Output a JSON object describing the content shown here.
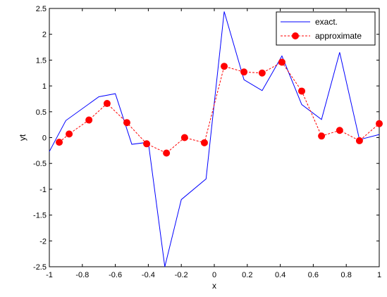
{
  "chart_data": {
    "type": "line",
    "xlabel": "x",
    "ylabel": "yt",
    "xlim": [
      -1,
      1
    ],
    "ylim": [
      -2.5,
      2.5
    ],
    "xticks": [
      -1,
      -0.8,
      -0.6,
      -0.4,
      -0.2,
      0,
      0.2,
      0.4,
      0.6,
      0.8,
      1
    ],
    "xtick_labels": [
      "-1",
      "-0.8",
      "-0.6",
      "-0.4",
      "-0.2",
      "0",
      "0.2",
      "0.4",
      "0.6",
      "0.8",
      "1"
    ],
    "yticks": [
      -2.5,
      -2,
      -1.5,
      -1,
      -0.5,
      0,
      0.5,
      1,
      1.5,
      2,
      2.5
    ],
    "ytick_labels": [
      "-2.5",
      "-2",
      "-1.5",
      "-1",
      "-0.5",
      "0",
      "0.5",
      "1",
      "1.5",
      "2",
      "2.5"
    ],
    "grid": false,
    "legend_position": "top-right",
    "series": [
      {
        "name": "exact.",
        "color": "#0000ff",
        "style": "solid",
        "marker": "none",
        "x": [
          -1,
          -0.9,
          -0.7,
          -0.6,
          -0.5,
          -0.4,
          -0.3,
          -0.2,
          -0.05,
          0.06,
          0.18,
          0.29,
          0.41,
          0.53,
          0.65,
          0.76,
          0.88,
          1
        ],
        "y": [
          -0.27,
          0.33,
          0.79,
          0.85,
          -0.13,
          -0.09,
          -2.5,
          -1.2,
          -0.8,
          2.44,
          1.12,
          0.91,
          1.58,
          0.64,
          0.35,
          1.65,
          -0.04,
          0.06
        ]
      },
      {
        "name": "approximate",
        "color": "#ff0000",
        "style": "dashed",
        "marker": "circle",
        "x": [
          -0.94,
          -0.88,
          -0.76,
          -0.65,
          -0.53,
          -0.41,
          -0.29,
          -0.18,
          -0.06,
          0.06,
          0.18,
          0.29,
          0.41,
          0.53,
          0.65,
          0.76,
          0.88,
          1
        ],
        "y": [
          -0.09,
          0.07,
          0.34,
          0.66,
          0.29,
          -0.12,
          -0.3,
          0.0,
          -0.1,
          1.38,
          1.27,
          1.25,
          1.46,
          0.9,
          0.03,
          0.14,
          -0.06,
          0.27
        ]
      }
    ]
  }
}
